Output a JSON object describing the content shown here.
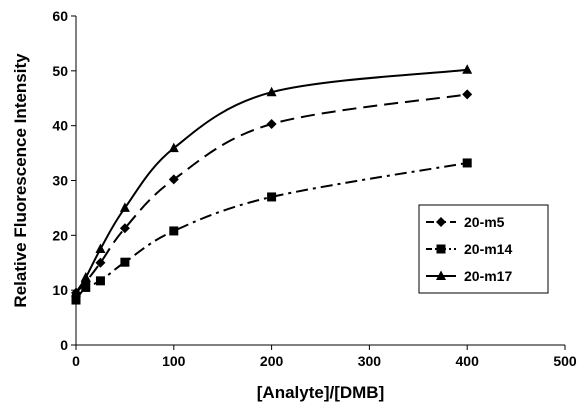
{
  "chart_data": {
    "type": "line",
    "xlabel": "[Analyte]/[DMB]",
    "ylabel": "Relative Fluorescence Intensity",
    "xlim": [
      0,
      500
    ],
    "ylim": [
      0,
      60
    ],
    "xticks": [
      0,
      100,
      200,
      300,
      400,
      500
    ],
    "yticks": [
      0,
      10,
      20,
      30,
      40,
      50,
      60
    ],
    "grid": false,
    "legend_position": "right",
    "series": [
      {
        "name": "20-m5",
        "marker": "diamond",
        "line_style": "long-dash",
        "x": [
          0,
          10,
          25,
          50,
          100,
          200,
          400
        ],
        "y": [
          9.5,
          11.5,
          15,
          21.3,
          30.2,
          40.3,
          45.7
        ]
      },
      {
        "name": "20-m14",
        "marker": "square",
        "line_style": "dash-dot",
        "x": [
          0,
          10,
          25,
          50,
          100,
          200,
          400
        ],
        "y": [
          8.2,
          10.5,
          11.7,
          15.1,
          20.8,
          27,
          33.2
        ]
      },
      {
        "name": "20-m17",
        "marker": "triangle",
        "line_style": "solid",
        "x": [
          0,
          10,
          25,
          50,
          100,
          200,
          400
        ],
        "y": [
          9.6,
          12.3,
          17.5,
          25,
          35.9,
          46.1,
          50.2
        ]
      }
    ]
  }
}
